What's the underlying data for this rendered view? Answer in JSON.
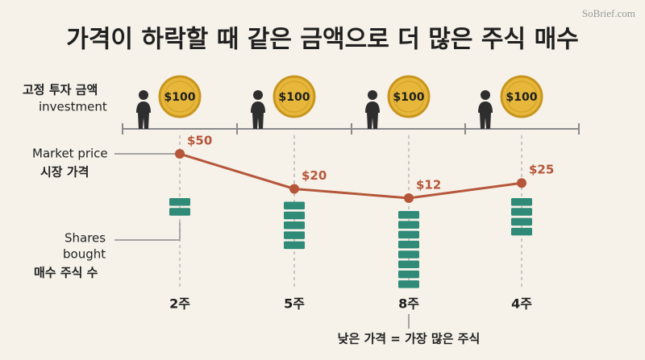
{
  "title": "가격이 하락할 때 같은 금액으로 더 많은 주식 매수",
  "watermark": "SoBrief.com",
  "labels": {
    "investment_ko": "고정 투자 금액",
    "investment_en": "investment",
    "price_en": "Market price",
    "price_ko": "시장 가격",
    "shares_en_1": "Shares",
    "shares_en_2": "bought",
    "shares_ko": "매수 주식 수"
  },
  "periods": [
    {
      "investment": "$100",
      "price": {
        "value": 50,
        "label": "$50"
      },
      "shares": {
        "value": 2,
        "label": "2주"
      }
    },
    {
      "investment": "$100",
      "price": {
        "value": 20,
        "label": "$20"
      },
      "shares": {
        "value": 5,
        "label": "5주"
      }
    },
    {
      "investment": "$100",
      "price": {
        "value": 12,
        "label": "$12"
      },
      "shares": {
        "value": 8,
        "label": "8주"
      }
    },
    {
      "investment": "$100",
      "price": {
        "value": 25,
        "label": "$25"
      },
      "shares": {
        "value": 4,
        "label": "4주"
      }
    }
  ],
  "annotation": "낮은 가격 = 가장 많은 주식"
}
